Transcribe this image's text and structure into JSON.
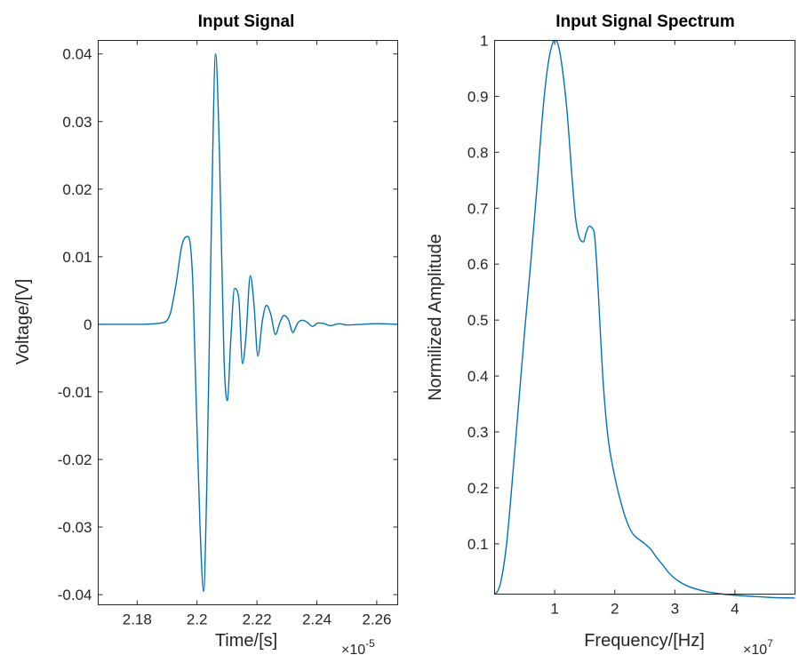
{
  "colors": {
    "series": "#0072bd",
    "axis": "#262626"
  },
  "chart_data": [
    {
      "type": "line",
      "title": "Input Signal",
      "xlabel": "Time/[s]",
      "ylabel": "Voltage/[V]",
      "x_exponent_label": "×10",
      "x_exponent_power": "-5",
      "xlim": [
        2.167,
        2.267
      ],
      "ylim": [
        -0.0415,
        0.042
      ],
      "xticks": [
        2.18,
        2.2,
        2.22,
        2.24,
        2.26
      ],
      "xtick_labels": [
        "2.18",
        "2.2",
        "2.22",
        "2.24",
        "2.26"
      ],
      "yticks": [
        -0.04,
        -0.03,
        -0.02,
        -0.01,
        0,
        0.01,
        0.02,
        0.03,
        0.04
      ],
      "ytick_labels": [
        "-0.04",
        "-0.03",
        "-0.02",
        "-0.01",
        "0",
        "0.01",
        "0.02",
        "0.03",
        "0.04"
      ],
      "grid": false,
      "series": [
        {
          "x": [
            2.167,
            2.18,
            2.188,
            2.191,
            2.193,
            2.195,
            2.197,
            2.1985,
            2.1995,
            2.201,
            2.2022,
            2.2032,
            2.2048,
            2.2062,
            2.2075,
            2.209,
            2.2101,
            2.2113,
            2.2125,
            2.2139,
            2.2152,
            2.2163,
            2.2178,
            2.219,
            2.2203,
            2.2218,
            2.2232,
            2.2246,
            2.2262,
            2.2276,
            2.229,
            2.2305,
            2.232,
            2.2336,
            2.2352,
            2.2368,
            2.2385,
            2.2405,
            2.2425,
            2.2445,
            2.2475,
            2.25,
            2.255,
            2.26,
            2.267
          ],
          "y": [
            0,
            0,
            0.0002,
            0.0015,
            0.006,
            0.0118,
            0.013,
            0.007,
            -0.008,
            -0.03,
            -0.0395,
            -0.025,
            0.015,
            0.04,
            0.025,
            -0.005,
            -0.0113,
            -0.002,
            0.0053,
            0.004,
            -0.0058,
            -0.002,
            0.0072,
            0.003,
            -0.0047,
            0.0005,
            0.0028,
            0.0015,
            -0.0015,
            0.0002,
            0.0013,
            0.0007,
            -0.0012,
            0.0002,
            0.0006,
            0.0003,
            -0.0003,
            0.0002,
            0.0001,
            -0.0002,
            0.0001,
            -0.0001,
            0,
            0.0001,
            0
          ]
        }
      ]
    },
    {
      "type": "line",
      "title": "Input Signal Spectrum",
      "xlabel": "Frequency/[Hz]",
      "ylabel": "Normilized Amplitude",
      "x_exponent_label": "×10",
      "x_exponent_power": "7",
      "xlim": [
        0,
        5
      ],
      "ylim": [
        0.01,
        1
      ],
      "xticks": [
        1,
        2,
        3,
        4
      ],
      "xtick_labels": [
        "1",
        "2",
        "3",
        "4"
      ],
      "yticks": [
        0.1,
        0.2,
        0.3,
        0.4,
        0.5,
        0.6,
        0.7,
        0.8,
        0.9,
        1
      ],
      "ytick_labels": [
        "0.1",
        "0.2",
        "0.3",
        "0.4",
        "0.5",
        "0.6",
        "0.7",
        "0.8",
        "0.9",
        "1"
      ],
      "grid": false,
      "series": [
        {
          "x": [
            0,
            0.05,
            0.1,
            0.2,
            0.3,
            0.4,
            0.5,
            0.6,
            0.7,
            0.8,
            0.88,
            0.95,
            1.0,
            1.05,
            1.1,
            1.2,
            1.3,
            1.35,
            1.42,
            1.48,
            1.52,
            1.58,
            1.62,
            1.66,
            1.7,
            1.75,
            1.8,
            1.85,
            1.9,
            2.0,
            2.1,
            2.2,
            2.3,
            2.4,
            2.5,
            2.6,
            2.7,
            2.8,
            2.9,
            3.0,
            3.2,
            3.5,
            3.8,
            4.0,
            4.3,
            4.6,
            5.0
          ],
          "y": [
            0.01,
            0.015,
            0.03,
            0.1,
            0.22,
            0.35,
            0.48,
            0.6,
            0.73,
            0.87,
            0.95,
            0.99,
            1.0,
            0.995,
            0.97,
            0.88,
            0.74,
            0.68,
            0.645,
            0.64,
            0.655,
            0.668,
            0.665,
            0.655,
            0.6,
            0.5,
            0.4,
            0.33,
            0.28,
            0.22,
            0.175,
            0.14,
            0.118,
            0.108,
            0.1,
            0.09,
            0.075,
            0.062,
            0.048,
            0.038,
            0.025,
            0.015,
            0.01,
            0.008,
            0.006,
            0.004,
            0.003
          ]
        }
      ]
    }
  ]
}
